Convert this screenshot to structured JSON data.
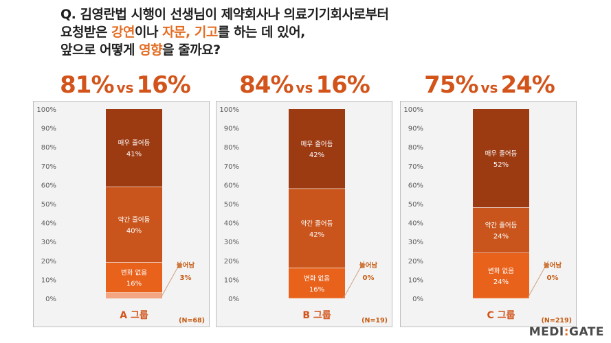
{
  "question": {
    "line1": "Q. 김영란법 시행이 선생님이 제약회사나 의료기기회사로부터",
    "line2_a": "요청받은 ",
    "line2_hl1": "강연",
    "line2_b": "이나 ",
    "line2_hl2": "자문, 기고",
    "line2_c": "를 하는 데 있어,",
    "line3_a": "앞으로 어떻게 ",
    "line3_hl": "영향",
    "line3_b": "을 줄까요?"
  },
  "accent_color": "#e36c22",
  "vs_label": "vs",
  "chart_data": [
    {
      "type": "bar",
      "stacked": true,
      "headline_left": "81%",
      "headline_right": "16%",
      "category": "A 그룹",
      "n": "(N=68)",
      "ylim": [
        0,
        100
      ],
      "yticks": [
        "0%",
        "10%",
        "20%",
        "30%",
        "40%",
        "50%",
        "60%",
        "70%",
        "80%",
        "90%",
        "100%"
      ],
      "grid": false,
      "series": [
        {
          "name": "늘어남",
          "value": 3,
          "label": "3%",
          "color": "#f4a582"
        },
        {
          "name": "변화 없음",
          "value": 16,
          "label": "16%",
          "color": "#e8621c"
        },
        {
          "name": "약간 줄어듬",
          "value": 40,
          "label": "40%",
          "color": "#c9551c"
        },
        {
          "name": "매우 줄어듬",
          "value": 41,
          "label": "41%",
          "color": "#9c3a12"
        }
      ]
    },
    {
      "type": "bar",
      "stacked": true,
      "headline_left": "84%",
      "headline_right": "16%",
      "category": "B 그룹",
      "n": "(N=19)",
      "ylim": [
        0,
        100
      ],
      "yticks": [
        "0%",
        "10%",
        "20%",
        "30%",
        "40%",
        "50%",
        "60%",
        "70%",
        "80%",
        "90%",
        "100%"
      ],
      "grid": false,
      "series": [
        {
          "name": "늘어남",
          "value": 0,
          "label": "0%",
          "color": "#f4a582"
        },
        {
          "name": "변화 없음",
          "value": 16,
          "label": "16%",
          "color": "#e8621c"
        },
        {
          "name": "약간 줄어듬",
          "value": 42,
          "label": "42%",
          "color": "#c9551c"
        },
        {
          "name": "매우 줄어듬",
          "value": 42,
          "label": "42%",
          "color": "#9c3a12"
        }
      ]
    },
    {
      "type": "bar",
      "stacked": true,
      "headline_left": "75%",
      "headline_right": "24%",
      "category": "C 그룹",
      "n": "(N=219)",
      "ylim": [
        0,
        100
      ],
      "yticks": [
        "0%",
        "10%",
        "20%",
        "30%",
        "40%",
        "50%",
        "60%",
        "70%",
        "80%",
        "90%",
        "100%"
      ],
      "grid": false,
      "series": [
        {
          "name": "늘어남",
          "value": 0,
          "label": "0%",
          "color": "#f4a582"
        },
        {
          "name": "변화 없음",
          "value": 24,
          "label": "24%",
          "color": "#e8621c"
        },
        {
          "name": "약간 줄어듬",
          "value": 24,
          "label": "24%",
          "color": "#c9551c"
        },
        {
          "name": "매우 줄어듬",
          "value": 52,
          "label": "52%",
          "color": "#9c3a12"
        }
      ]
    }
  ],
  "brand": {
    "part1": "MEDI",
    "dash": ":",
    "part2": "GATE"
  }
}
